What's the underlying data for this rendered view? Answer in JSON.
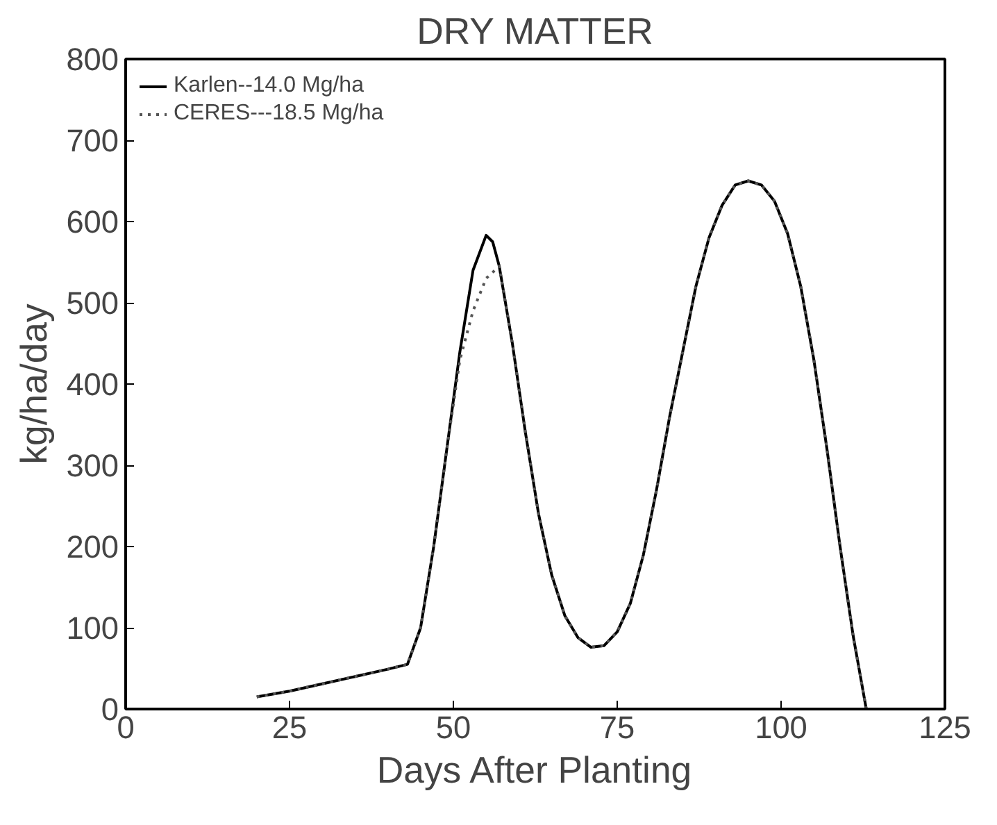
{
  "chart_data": {
    "type": "line",
    "title": "DRY MATTER",
    "xlabel": "Days After Planting",
    "ylabel": "kg/ha/day",
    "xlim": [
      0,
      125
    ],
    "ylim": [
      0,
      800
    ],
    "xticks": [
      0,
      25,
      50,
      75,
      100,
      125
    ],
    "yticks": [
      0,
      100,
      200,
      300,
      400,
      500,
      600,
      700,
      800
    ],
    "grid": false,
    "legend": "top left",
    "marker": "none",
    "series": [
      {
        "name": "Karlen--14.0 Mg/ha",
        "color": "#000000",
        "line_style": "solid",
        "x": [
          20,
          25,
          30,
          35,
          40,
          43,
          45,
          47,
          49,
          51,
          53,
          55,
          56,
          57,
          59,
          61,
          63,
          65,
          67,
          69,
          71,
          73,
          75,
          77,
          79,
          81,
          83,
          85,
          87,
          89,
          91,
          93,
          95,
          97,
          99,
          101,
          103,
          105,
          107,
          109,
          111,
          113
        ],
        "values": [
          15,
          22,
          31,
          40,
          49,
          55,
          100,
          200,
          320,
          440,
          540,
          583,
          575,
          545,
          450,
          340,
          240,
          165,
          115,
          88,
          76,
          78,
          95,
          130,
          190,
          270,
          360,
          440,
          520,
          580,
          620,
          645,
          650,
          645,
          625,
          585,
          520,
          430,
          320,
          200,
          90,
          0
        ]
      },
      {
        "name": "CERES---18.5 Mg/ha",
        "color": "#555555",
        "line_style": "dotted",
        "x": [
          20,
          25,
          30,
          35,
          40,
          43,
          45,
          47,
          49,
          51,
          53,
          55,
          57,
          59,
          61,
          63,
          65,
          67,
          69,
          71,
          73,
          75,
          77,
          79,
          81,
          83,
          85,
          87,
          89,
          91,
          93,
          95,
          97,
          99,
          101,
          103,
          105,
          107,
          109,
          111,
          113
        ],
        "values": [
          15,
          22,
          31,
          40,
          49,
          55,
          100,
          200,
          320,
          430,
          490,
          530,
          545,
          450,
          340,
          240,
          165,
          115,
          88,
          76,
          78,
          95,
          130,
          190,
          270,
          360,
          440,
          520,
          580,
          620,
          645,
          650,
          645,
          625,
          585,
          520,
          430,
          320,
          200,
          90,
          0
        ]
      }
    ]
  }
}
